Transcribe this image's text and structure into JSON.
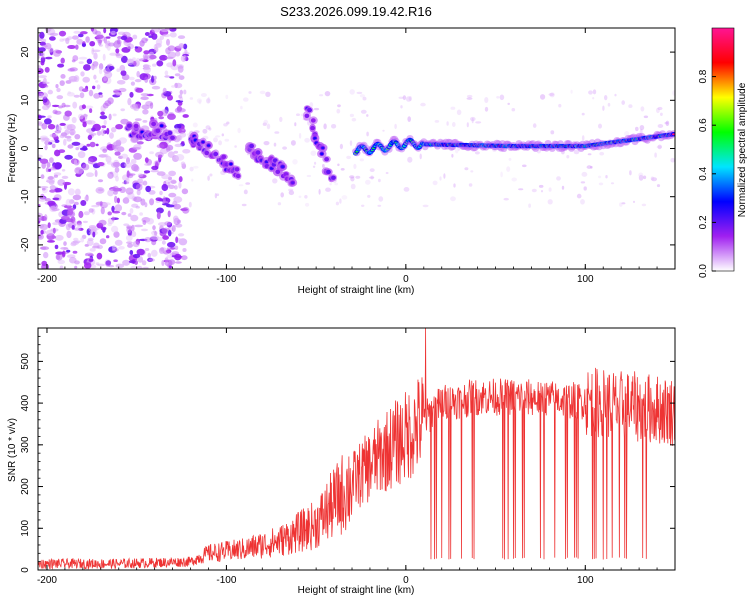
{
  "figure": {
    "title": "S233.2026.099.19.42.R16"
  },
  "chart_data": [
    {
      "type": "heatmap",
      "name": "spectrogram",
      "xlabel": "Height of straight line (km)",
      "ylabel": "Frequency (Hz)",
      "xlim": [
        -205,
        150
      ],
      "ylim": [
        -25,
        25
      ],
      "x_ticks": [
        -200,
        -100,
        0,
        100
      ],
      "x_tick_labels": [
        "-200",
        "-100",
        "0",
        "100"
      ],
      "y_ticks": [
        -20,
        -10,
        0,
        10,
        20
      ],
      "y_tick_labels": [
        "-20",
        "-10",
        "0",
        "10",
        "20"
      ],
      "colorbar": {
        "label": "Normalized spectral amplitude",
        "range": [
          0,
          1
        ],
        "ticks": [
          0.0,
          0.2,
          0.4,
          0.6,
          0.8
        ],
        "tick_labels": [
          "0.0",
          "0.2",
          "0.4",
          "0.6",
          "0.8"
        ],
        "colors": [
          "#ffffff",
          "#a020f0",
          "#0000ff",
          "#00e5ff",
          "#00ff00",
          "#ffff00",
          "#ff0000",
          "#ff1493"
        ]
      },
      "features": [
        {
          "name": "noise-region",
          "x_range": [
            -205,
            -122
          ],
          "freq_range": [
            -25,
            25
          ],
          "level": 0.08
        },
        {
          "name": "branch-1",
          "points": [
            [
              -155,
              3.5
            ],
            [
              -140,
              4
            ],
            [
              -130,
              3
            ]
          ],
          "level": 0.25
        },
        {
          "name": "branch-2",
          "points": [
            [
              -120,
              2
            ],
            [
              -110,
              0
            ],
            [
              -100,
              -3
            ],
            [
              -92,
              -6
            ]
          ],
          "level": 0.2
        },
        {
          "name": "branch-3",
          "points": [
            [
              -88,
              0
            ],
            [
              -80,
              -2
            ],
            [
              -70,
              -4
            ],
            [
              -62,
              -7
            ]
          ],
          "level": 0.18
        },
        {
          "name": "branch-4",
          "points": [
            [
              -55,
              9
            ],
            [
              -50,
              3
            ],
            [
              -45,
              -3
            ],
            [
              -40,
              -8
            ]
          ],
          "level": 0.2
        },
        {
          "name": "carrier",
          "points": [
            [
              -28,
              -0.5
            ],
            [
              0,
              1.0
            ],
            [
              20,
              0.8
            ],
            [
              60,
              0.5
            ],
            [
              100,
              0.5
            ],
            [
              120,
              1.5
            ],
            [
              150,
              3.0
            ]
          ],
          "level": 0.95
        }
      ]
    },
    {
      "type": "line",
      "name": "snr",
      "xlabel": "Height of straight line (km)",
      "ylabel": "SNR (10 * v/v)",
      "xlim": [
        -205,
        150
      ],
      "ylim": [
        0,
        580
      ],
      "x_ticks": [
        -200,
        -100,
        0,
        100
      ],
      "x_tick_labels": [
        "-200",
        "-100",
        "0",
        "100"
      ],
      "y_ticks": [
        0,
        100,
        200,
        300,
        400,
        500
      ],
      "y_tick_labels": [
        "0",
        "100",
        "200",
        "300",
        "400",
        "500"
      ],
      "series_color": "#ee3333",
      "envelope": [
        {
          "x": -205,
          "y": 15
        },
        {
          "x": -160,
          "y": 15
        },
        {
          "x": -120,
          "y": 20
        },
        {
          "x": -110,
          "y": 40
        },
        {
          "x": -90,
          "y": 50
        },
        {
          "x": -70,
          "y": 70
        },
        {
          "x": -50,
          "y": 110
        },
        {
          "x": -40,
          "y": 160
        },
        {
          "x": -30,
          "y": 210
        },
        {
          "x": -20,
          "y": 250
        },
        {
          "x": -10,
          "y": 290
        },
        {
          "x": 0,
          "y": 320
        },
        {
          "x": 10,
          "y": 360
        },
        {
          "x": 20,
          "y": 400
        },
        {
          "x": 40,
          "y": 415
        },
        {
          "x": 60,
          "y": 415
        },
        {
          "x": 80,
          "y": 410
        },
        {
          "x": 100,
          "y": 405
        },
        {
          "x": 120,
          "y": 395
        },
        {
          "x": 150,
          "y": 380
        }
      ],
      "spike": {
        "x": 11,
        "y": 580
      },
      "dropouts": {
        "x_range": [
          8,
          135
        ],
        "count": 45,
        "floor": 25
      }
    }
  ]
}
